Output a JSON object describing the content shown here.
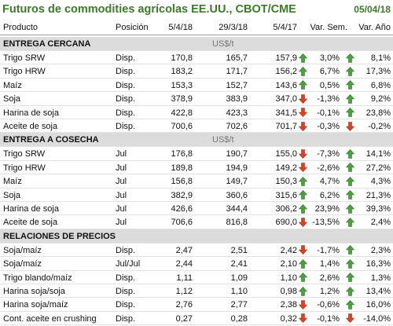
{
  "header": {
    "title": "Futuros de commodities agrícolas EE.UU., CBOT/CME",
    "date": "05/04/18"
  },
  "columns": [
    "Producto",
    "Posición",
    "5/4/18",
    "29/3/18",
    "5/4/17",
    "Var. Sem.",
    "Var. Año"
  ],
  "sections": [
    {
      "title": "ENTREGA CERCANA",
      "unit": "US$/t",
      "rows": [
        [
          "Trigo SRW",
          "Disp.",
          "170,8",
          "165,7",
          "157,9",
          "3,0%",
          "8,1%"
        ],
        [
          "Trigo HRW",
          "Disp.",
          "183,2",
          "171,7",
          "156,2",
          "6,7%",
          "17,3%"
        ],
        [
          "Maíz",
          "Disp.",
          "153,3",
          "152,7",
          "143,6",
          "0,5%",
          "6,8%"
        ],
        [
          "Soja",
          "Disp.",
          "378,9",
          "383,9",
          "347,0",
          "-1,3%",
          "9,2%"
        ],
        [
          "Harina de soja",
          "Disp.",
          "422,8",
          "423,3",
          "341,5",
          "-0,1%",
          "23,8%"
        ],
        [
          "Aceite de soja",
          "Disp.",
          "700,6",
          "702,6",
          "701,7",
          "-0,3%",
          "-0,2%"
        ]
      ]
    },
    {
      "title": "ENTREGA A COSECHA",
      "unit": "US$/t",
      "rows": [
        [
          "Trigo SRW",
          "Jul",
          "176,8",
          "190,7",
          "155,0",
          "-7,3%",
          "14,1%"
        ],
        [
          "Trigo HRW",
          "Jul",
          "189,8",
          "194,9",
          "149,2",
          "-2,6%",
          "27,2%"
        ],
        [
          "Maíz",
          "Jul",
          "156,8",
          "149,7",
          "150,3",
          "4,7%",
          "4,3%"
        ],
        [
          "Soja",
          "Jul",
          "382,9",
          "360,6",
          "315,6",
          "6,2%",
          "21,3%"
        ],
        [
          "Harina de soja",
          "Jul",
          "426,6",
          "344,4",
          "306,2",
          "23,9%",
          "39,3%"
        ],
        [
          "Aceite de soja",
          "Jul",
          "706,6",
          "816,8",
          "690,0",
          "-13,5%",
          "2,4%"
        ]
      ]
    },
    {
      "title": "RELACIONES DE PRECIOS",
      "rows": [
        [
          "Soja/maíz",
          "Disp.",
          "2,47",
          "2,51",
          "2,42",
          "-1,7%",
          "2,3%"
        ],
        [
          "Soja/maíz",
          "Jul/Jul",
          "2,44",
          "2,41",
          "2,10",
          "1,4%",
          "16,3%"
        ],
        [
          "Trigo blando/maíz",
          "Disp.",
          "1,11",
          "1,09",
          "1,10",
          "2,6%",
          "1,3%"
        ],
        [
          "Harina soja/soja",
          "Disp.",
          "1,12",
          "1,10",
          "0,98",
          "1,2%",
          "13,4%"
        ],
        [
          "Harina soja/maíz",
          "Disp.",
          "2,76",
          "2,77",
          "2,38",
          "-0,6%",
          "16,0%"
        ],
        [
          "Cont. aceite en crushing",
          "Disp.",
          "0,27",
          "0,28",
          "0,32",
          "-0,1%",
          "-14,0%"
        ]
      ]
    }
  ]
}
